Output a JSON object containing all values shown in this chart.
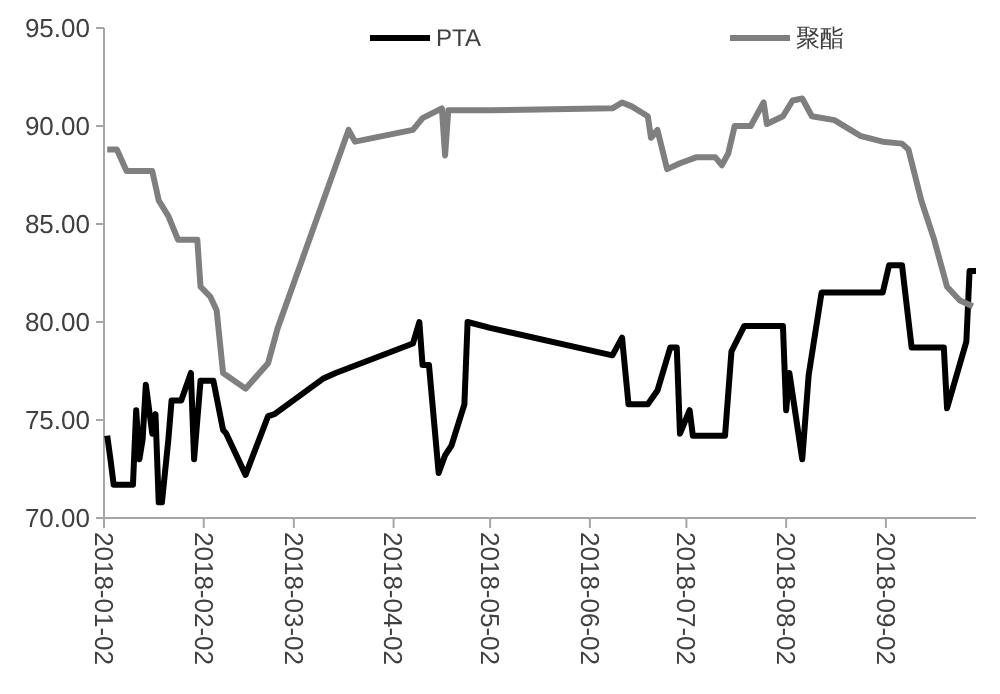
{
  "chart_data": {
    "type": "line",
    "legend": "top",
    "line_style": "solid",
    "marker": "none",
    "grid": false,
    "xlim": [
      "2018-01-02",
      "2018-09-30"
    ],
    "xticks": [
      "2018-01-02",
      "2018-02-02",
      "2018-03-02",
      "2018-04-02",
      "2018-05-02",
      "2018-06-02",
      "2018-07-02",
      "2018-08-02",
      "2018-09-02"
    ],
    "ylim": [
      70,
      95
    ],
    "yticks": [
      {
        "value": 70,
        "label": "70.00"
      },
      {
        "value": 75,
        "label": "75.00"
      },
      {
        "value": 80,
        "label": "80.00"
      },
      {
        "value": 85,
        "label": "85.00"
      },
      {
        "value": 90,
        "label": "90.00"
      },
      {
        "value": 95,
        "label": "95.00"
      }
    ],
    "series": [
      {
        "name": "PTA",
        "color": "#000000",
        "x": [
          "2018-01-03",
          "2018-01-04",
          "2018-01-05",
          "2018-01-11",
          "2018-01-12",
          "2018-01-13",
          "2018-01-14",
          "2018-01-15",
          "2018-01-17",
          "2018-01-18",
          "2018-01-19",
          "2018-01-20",
          "2018-01-22",
          "2018-01-23",
          "2018-01-26",
          "2018-01-29",
          "2018-01-30",
          "2018-02-01",
          "2018-02-05",
          "2018-02-08",
          "2018-02-09",
          "2018-02-15",
          "2018-02-22",
          "2018-02-24",
          "2018-03-11",
          "2018-03-15",
          "2018-04-08",
          "2018-04-10",
          "2018-04-11",
          "2018-04-13",
          "2018-04-16",
          "2018-04-18",
          "2018-04-20",
          "2018-04-24",
          "2018-04-25",
          "2018-05-02",
          "2018-06-09",
          "2018-06-12",
          "2018-06-14",
          "2018-06-20",
          "2018-06-23",
          "2018-06-27",
          "2018-06-29",
          "2018-06-30",
          "2018-07-03",
          "2018-07-04",
          "2018-07-14",
          "2018-07-16",
          "2018-07-20",
          "2018-08-01",
          "2018-08-02",
          "2018-08-03",
          "2018-08-07",
          "2018-08-09",
          "2018-08-13",
          "2018-09-01",
          "2018-09-03",
          "2018-09-07",
          "2018-09-10",
          "2018-09-20",
          "2018-09-21",
          "2018-09-27",
          "2018-09-28",
          "2018-09-30"
        ],
        "values": [
          74.2,
          73.0,
          71.7,
          71.7,
          75.5,
          73.0,
          74.0,
          76.8,
          74.3,
          75.3,
          70.8,
          70.8,
          74.0,
          76.0,
          76.0,
          77.4,
          73.0,
          77.0,
          77.0,
          74.5,
          74.3,
          72.2,
          75.2,
          75.3,
          77.1,
          77.4,
          78.9,
          80.0,
          77.8,
          77.8,
          72.3,
          73.2,
          73.7,
          75.8,
          80.0,
          79.7,
          78.3,
          79.2,
          75.8,
          75.8,
          76.5,
          78.7,
          78.7,
          74.3,
          75.5,
          74.2,
          74.2,
          78.5,
          79.8,
          79.8,
          75.5,
          77.4,
          73.0,
          77.3,
          81.5,
          81.5,
          82.9,
          82.9,
          78.7,
          78.7,
          75.6,
          79.0,
          82.6,
          82.6
        ]
      },
      {
        "name": "聚酯",
        "color": "#7f7f7f",
        "x": [
          "2018-01-03",
          "2018-01-06",
          "2018-01-09",
          "2018-01-17",
          "2018-01-19",
          "2018-01-22",
          "2018-01-25",
          "2018-01-31",
          "2018-02-01",
          "2018-02-04",
          "2018-02-06",
          "2018-02-08",
          "2018-02-15",
          "2018-02-22",
          "2018-02-25",
          "2018-03-19",
          "2018-03-21",
          "2018-04-08",
          "2018-04-11",
          "2018-04-17",
          "2018-04-18",
          "2018-04-19",
          "2018-05-02",
          "2018-06-09",
          "2018-06-12",
          "2018-06-15",
          "2018-06-20",
          "2018-06-21",
          "2018-06-23",
          "2018-06-26",
          "2018-06-30",
          "2018-07-05",
          "2018-07-11",
          "2018-07-13",
          "2018-07-15",
          "2018-07-17",
          "2018-07-22",
          "2018-07-26",
          "2018-07-27",
          "2018-08-01",
          "2018-08-04",
          "2018-08-07",
          "2018-08-10",
          "2018-08-17",
          "2018-08-22",
          "2018-08-25",
          "2018-09-01",
          "2018-09-07",
          "2018-09-09",
          "2018-09-13",
          "2018-09-17",
          "2018-09-21",
          "2018-09-25",
          "2018-09-29"
        ],
        "values": [
          88.8,
          88.8,
          87.7,
          87.7,
          86.2,
          85.4,
          84.2,
          84.2,
          81.8,
          81.3,
          80.6,
          77.4,
          76.6,
          77.9,
          79.7,
          89.8,
          89.2,
          89.8,
          90.4,
          90.9,
          88.5,
          90.8,
          90.8,
          90.9,
          91.2,
          91.0,
          90.5,
          89.4,
          89.8,
          87.8,
          88.1,
          88.4,
          88.4,
          88.0,
          88.6,
          90.0,
          90.0,
          91.2,
          90.1,
          90.5,
          91.3,
          91.4,
          90.5,
          90.3,
          89.8,
          89.5,
          89.2,
          89.1,
          88.8,
          86.2,
          84.2,
          81.8,
          81.1,
          80.8
        ]
      }
    ]
  }
}
